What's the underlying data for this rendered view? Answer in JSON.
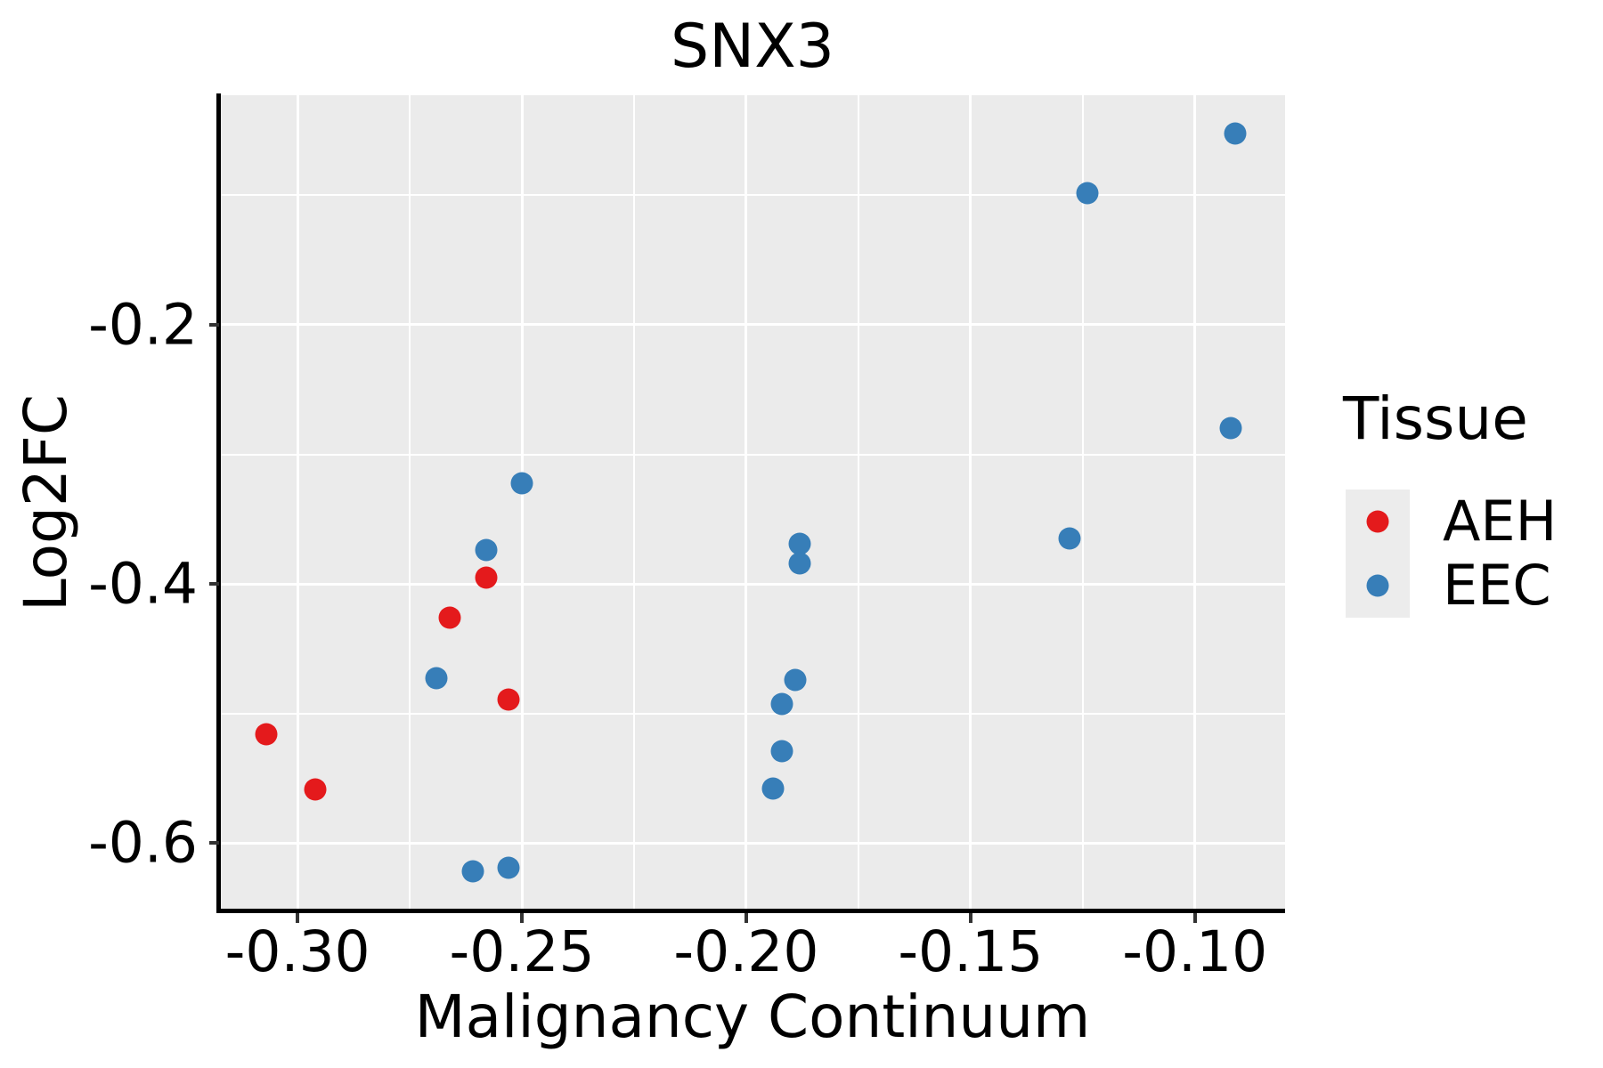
{
  "title": "SNX3",
  "colors": {
    "background": "#FFFFFF",
    "panel_background": "#EBEBEB",
    "grid": "#FFFFFF",
    "axis_line": "#000000",
    "tick": "#333333",
    "text": "#000000",
    "aeh": "#E41A1C",
    "eec": "#377EB8"
  },
  "chart_data": {
    "type": "scatter",
    "title": "SNX3",
    "xlabel": "Malignancy Continuum",
    "ylabel": "Log2FC",
    "grid": true,
    "x_domain": [
      -0.3173,
      -0.0799
    ],
    "y_domain": [
      -0.6522,
      -0.0227
    ],
    "x_ticks": [
      {
        "v": -0.3,
        "label": "-0.30"
      },
      {
        "v": -0.25,
        "label": "-0.25"
      },
      {
        "v": -0.2,
        "label": "-0.20"
      },
      {
        "v": -0.15,
        "label": "-0.15"
      },
      {
        "v": -0.1,
        "label": "-0.10"
      }
    ],
    "y_ticks": [
      {
        "v": -0.2,
        "label": "-0.2"
      },
      {
        "v": -0.4,
        "label": "-0.4"
      },
      {
        "v": -0.6,
        "label": "-0.6"
      }
    ],
    "x_minor_grid": [
      -0.275,
      -0.225,
      -0.175,
      -0.125
    ],
    "y_minor_grid": [
      -0.5,
      -0.3,
      -0.1
    ],
    "legend": {
      "title": "Tissue",
      "position": "right",
      "entries": [
        {
          "label": "AEH",
          "color": "#E41A1C"
        },
        {
          "label": "EEC",
          "color": "#377EB8"
        }
      ]
    },
    "series": [
      {
        "name": "AEH",
        "color": "#E41A1C",
        "points": [
          [
            -0.307,
            -0.516
          ],
          [
            -0.296,
            -0.559
          ],
          [
            -0.266,
            -0.426
          ],
          [
            -0.258,
            -0.395
          ],
          [
            -0.253,
            -0.489
          ]
        ]
      },
      {
        "name": "EEC",
        "color": "#377EB8",
        "points": [
          [
            -0.269,
            -0.473
          ],
          [
            -0.258,
            -0.374
          ],
          [
            -0.25,
            -0.322
          ],
          [
            -0.261,
            -0.622
          ],
          [
            -0.253,
            -0.619
          ],
          [
            -0.188,
            -0.369
          ],
          [
            -0.188,
            -0.384
          ],
          [
            -0.189,
            -0.474
          ],
          [
            -0.192,
            -0.493
          ],
          [
            -0.192,
            -0.529
          ],
          [
            -0.194,
            -0.558
          ],
          [
            -0.124,
            -0.098
          ],
          [
            -0.091,
            -0.052
          ],
          [
            -0.092,
            -0.28
          ],
          [
            -0.128,
            -0.365
          ]
        ]
      }
    ]
  }
}
